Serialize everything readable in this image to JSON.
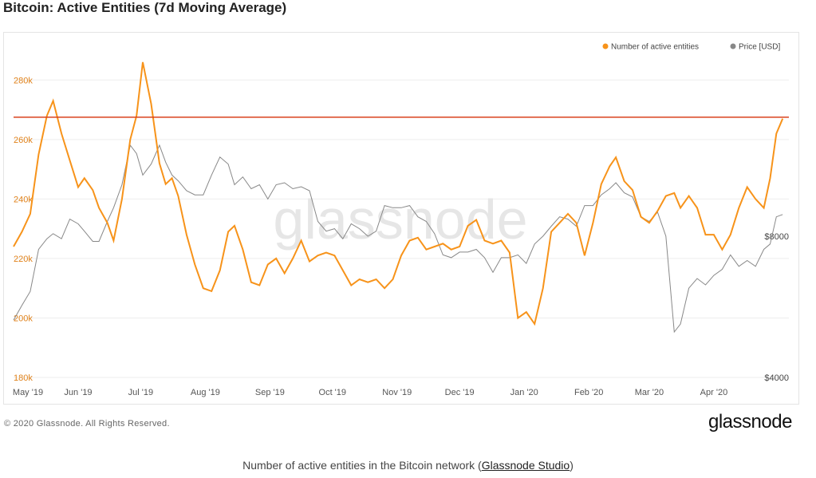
{
  "title": "Bitcoin: Active Entities (7d Moving Average)",
  "copyright": "© 2020 Glassnode. All Rights Reserved.",
  "brand": "glassnode",
  "watermark": "glassnode",
  "caption": {
    "prefix": "Number of active entities in the Bitcoin network (",
    "link": "Glassnode Studio",
    "suffix": ")"
  },
  "colors": {
    "entities": "#f7931a",
    "price": "#888888",
    "reference": "#d9431e",
    "left_axis": "#e0821b",
    "right_axis": "#444444"
  },
  "chart_data": {
    "type": "line",
    "legend": {
      "placement": "top-right",
      "items": [
        "Number of active entities",
        "Price [USD]"
      ]
    },
    "x_ticks": [
      "May '19",
      "Jun '19",
      "Jul '19",
      "Aug '19",
      "Sep '19",
      "Oct '19",
      "Nov '19",
      "Dec '19",
      "Jan '20",
      "Feb '20",
      "Mar '20",
      "Apr '20"
    ],
    "y_left": {
      "ticks": [
        "180k",
        "200k",
        "220k",
        "240k",
        "260k",
        "280k"
      ],
      "range": [
        180000,
        290000
      ]
    },
    "y_right": {
      "ticks": [
        "$4000",
        "$8000"
      ],
      "scale": "log"
    },
    "reference_line": 267500,
    "grid": true,
    "series": [
      {
        "name": "Number of active entities",
        "axis": "left",
        "points": [
          [
            "2019-05-01",
            224000
          ],
          [
            "2019-05-05",
            229000
          ],
          [
            "2019-05-09",
            235000
          ],
          [
            "2019-05-13",
            255000
          ],
          [
            "2019-05-17",
            268000
          ],
          [
            "2019-05-20",
            273000
          ],
          [
            "2019-05-24",
            262000
          ],
          [
            "2019-05-28",
            253000
          ],
          [
            "2019-06-01",
            244000
          ],
          [
            "2019-06-04",
            247000
          ],
          [
            "2019-06-08",
            243000
          ],
          [
            "2019-06-11",
            237000
          ],
          [
            "2019-06-15",
            232000
          ],
          [
            "2019-06-18",
            226000
          ],
          [
            "2019-06-22",
            240000
          ],
          [
            "2019-06-26",
            260000
          ],
          [
            "2019-06-29",
            268000
          ],
          [
            "2019-07-02",
            286000
          ],
          [
            "2019-07-06",
            272000
          ],
          [
            "2019-07-10",
            252000
          ],
          [
            "2019-07-13",
            245000
          ],
          [
            "2019-07-16",
            247000
          ],
          [
            "2019-07-19",
            241000
          ],
          [
            "2019-07-23",
            228000
          ],
          [
            "2019-07-27",
            218000
          ],
          [
            "2019-07-31",
            210000
          ],
          [
            "2019-08-04",
            209000
          ],
          [
            "2019-08-08",
            216000
          ],
          [
            "2019-08-12",
            229000
          ],
          [
            "2019-08-15",
            231000
          ],
          [
            "2019-08-19",
            223000
          ],
          [
            "2019-08-23",
            212000
          ],
          [
            "2019-08-27",
            211000
          ],
          [
            "2019-08-31",
            218000
          ],
          [
            "2019-09-04",
            220000
          ],
          [
            "2019-09-08",
            215000
          ],
          [
            "2019-09-12",
            220000
          ],
          [
            "2019-09-16",
            226000
          ],
          [
            "2019-09-20",
            219000
          ],
          [
            "2019-09-24",
            221000
          ],
          [
            "2019-09-28",
            222000
          ],
          [
            "2019-10-02",
            221000
          ],
          [
            "2019-10-06",
            216000
          ],
          [
            "2019-10-10",
            211000
          ],
          [
            "2019-10-14",
            213000
          ],
          [
            "2019-10-18",
            212000
          ],
          [
            "2019-10-22",
            213000
          ],
          [
            "2019-10-26",
            210000
          ],
          [
            "2019-10-30",
            213000
          ],
          [
            "2019-11-03",
            221000
          ],
          [
            "2019-11-07",
            226000
          ],
          [
            "2019-11-11",
            227000
          ],
          [
            "2019-11-15",
            223000
          ],
          [
            "2019-11-19",
            224000
          ],
          [
            "2019-11-23",
            225000
          ],
          [
            "2019-11-27",
            223000
          ],
          [
            "2019-12-01",
            224000
          ],
          [
            "2019-12-05",
            231000
          ],
          [
            "2019-12-09",
            233000
          ],
          [
            "2019-12-13",
            226000
          ],
          [
            "2019-12-17",
            225000
          ],
          [
            "2019-12-21",
            226000
          ],
          [
            "2019-12-25",
            222000
          ],
          [
            "2019-12-29",
            200000
          ],
          [
            "2020-01-02",
            202000
          ],
          [
            "2020-01-06",
            198000
          ],
          [
            "2020-01-10",
            210000
          ],
          [
            "2020-01-14",
            229000
          ],
          [
            "2020-01-18",
            232000
          ],
          [
            "2020-01-22",
            235000
          ],
          [
            "2020-01-26",
            232000
          ],
          [
            "2020-01-30",
            221000
          ],
          [
            "2020-02-03",
            232000
          ],
          [
            "2020-02-07",
            245000
          ],
          [
            "2020-02-11",
            251000
          ],
          [
            "2020-02-14",
            254000
          ],
          [
            "2020-02-18",
            246000
          ],
          [
            "2020-02-22",
            243000
          ],
          [
            "2020-02-26",
            234000
          ],
          [
            "2020-03-01",
            232000
          ],
          [
            "2020-03-05",
            236000
          ],
          [
            "2020-03-09",
            241000
          ],
          [
            "2020-03-13",
            242000
          ],
          [
            "2020-03-16",
            237000
          ],
          [
            "2020-03-20",
            241000
          ],
          [
            "2020-03-24",
            237000
          ],
          [
            "2020-03-28",
            228000
          ],
          [
            "2020-04-01",
            228000
          ],
          [
            "2020-04-05",
            223000
          ],
          [
            "2020-04-09",
            228000
          ],
          [
            "2020-04-13",
            237000
          ],
          [
            "2020-04-17",
            244000
          ],
          [
            "2020-04-21",
            240000
          ],
          [
            "2020-04-25",
            237000
          ],
          [
            "2020-04-28",
            247000
          ],
          [
            "2020-05-01",
            262000
          ],
          [
            "2020-05-04",
            267000
          ]
        ]
      },
      {
        "name": "Price [USD]",
        "axis": "right",
        "points": [
          [
            "2019-05-01",
            5300
          ],
          [
            "2019-05-05",
            5700
          ],
          [
            "2019-05-09",
            6100
          ],
          [
            "2019-05-13",
            7500
          ],
          [
            "2019-05-17",
            7900
          ],
          [
            "2019-05-20",
            8100
          ],
          [
            "2019-05-24",
            7900
          ],
          [
            "2019-05-28",
            8700
          ],
          [
            "2019-06-01",
            8500
          ],
          [
            "2019-06-04",
            8200
          ],
          [
            "2019-06-08",
            7800
          ],
          [
            "2019-06-11",
            7800
          ],
          [
            "2019-06-15",
            8600
          ],
          [
            "2019-06-18",
            9200
          ],
          [
            "2019-06-22",
            10300
          ],
          [
            "2019-06-26",
            12500
          ],
          [
            "2019-06-29",
            12000
          ],
          [
            "2019-07-02",
            10800
          ],
          [
            "2019-07-06",
            11400
          ],
          [
            "2019-07-10",
            12500
          ],
          [
            "2019-07-13",
            11500
          ],
          [
            "2019-07-16",
            10800
          ],
          [
            "2019-07-19",
            10500
          ],
          [
            "2019-07-23",
            10000
          ],
          [
            "2019-07-27",
            9800
          ],
          [
            "2019-07-31",
            9800
          ],
          [
            "2019-08-04",
            10800
          ],
          [
            "2019-08-08",
            11800
          ],
          [
            "2019-08-12",
            11400
          ],
          [
            "2019-08-15",
            10300
          ],
          [
            "2019-08-19",
            10700
          ],
          [
            "2019-08-23",
            10100
          ],
          [
            "2019-08-27",
            10300
          ],
          [
            "2019-08-31",
            9600
          ],
          [
            "2019-09-04",
            10300
          ],
          [
            "2019-09-08",
            10400
          ],
          [
            "2019-09-12",
            10100
          ],
          [
            "2019-09-16",
            10200
          ],
          [
            "2019-09-20",
            10000
          ],
          [
            "2019-09-24",
            8600
          ],
          [
            "2019-09-28",
            8200
          ],
          [
            "2019-10-02",
            8300
          ],
          [
            "2019-10-06",
            7900
          ],
          [
            "2019-10-10",
            8500
          ],
          [
            "2019-10-14",
            8300
          ],
          [
            "2019-10-18",
            8000
          ],
          [
            "2019-10-22",
            8200
          ],
          [
            "2019-10-26",
            9300
          ],
          [
            "2019-10-30",
            9200
          ],
          [
            "2019-11-03",
            9200
          ],
          [
            "2019-11-07",
            9300
          ],
          [
            "2019-11-11",
            8800
          ],
          [
            "2019-11-15",
            8600
          ],
          [
            "2019-11-19",
            8100
          ],
          [
            "2019-11-23",
            7300
          ],
          [
            "2019-11-27",
            7200
          ],
          [
            "2019-12-01",
            7400
          ],
          [
            "2019-12-05",
            7400
          ],
          [
            "2019-12-09",
            7500
          ],
          [
            "2019-12-13",
            7200
          ],
          [
            "2019-12-17",
            6700
          ],
          [
            "2019-12-21",
            7200
          ],
          [
            "2019-12-25",
            7200
          ],
          [
            "2019-12-29",
            7300
          ],
          [
            "2020-01-02",
            7000
          ],
          [
            "2020-01-06",
            7700
          ],
          [
            "2020-01-10",
            8000
          ],
          [
            "2020-01-14",
            8400
          ],
          [
            "2020-01-18",
            8800
          ],
          [
            "2020-01-22",
            8700
          ],
          [
            "2020-01-26",
            8400
          ],
          [
            "2020-01-30",
            9300
          ],
          [
            "2020-02-03",
            9300
          ],
          [
            "2020-02-07",
            9800
          ],
          [
            "2020-02-11",
            10100
          ],
          [
            "2020-02-14",
            10400
          ],
          [
            "2020-02-18",
            9900
          ],
          [
            "2020-02-22",
            9700
          ],
          [
            "2020-02-26",
            8800
          ],
          [
            "2020-03-01",
            8600
          ],
          [
            "2020-03-05",
            9000
          ],
          [
            "2020-03-09",
            8000
          ],
          [
            "2020-03-13",
            5000
          ],
          [
            "2020-03-16",
            5200
          ],
          [
            "2020-03-20",
            6200
          ],
          [
            "2020-03-24",
            6500
          ],
          [
            "2020-03-28",
            6300
          ],
          [
            "2020-04-01",
            6600
          ],
          [
            "2020-04-05",
            6800
          ],
          [
            "2020-04-09",
            7300
          ],
          [
            "2020-04-13",
            6900
          ],
          [
            "2020-04-17",
            7100
          ],
          [
            "2020-04-21",
            6900
          ],
          [
            "2020-04-25",
            7500
          ],
          [
            "2020-04-28",
            7700
          ],
          [
            "2020-05-01",
            8800
          ],
          [
            "2020-05-04",
            8900
          ]
        ]
      }
    ]
  }
}
